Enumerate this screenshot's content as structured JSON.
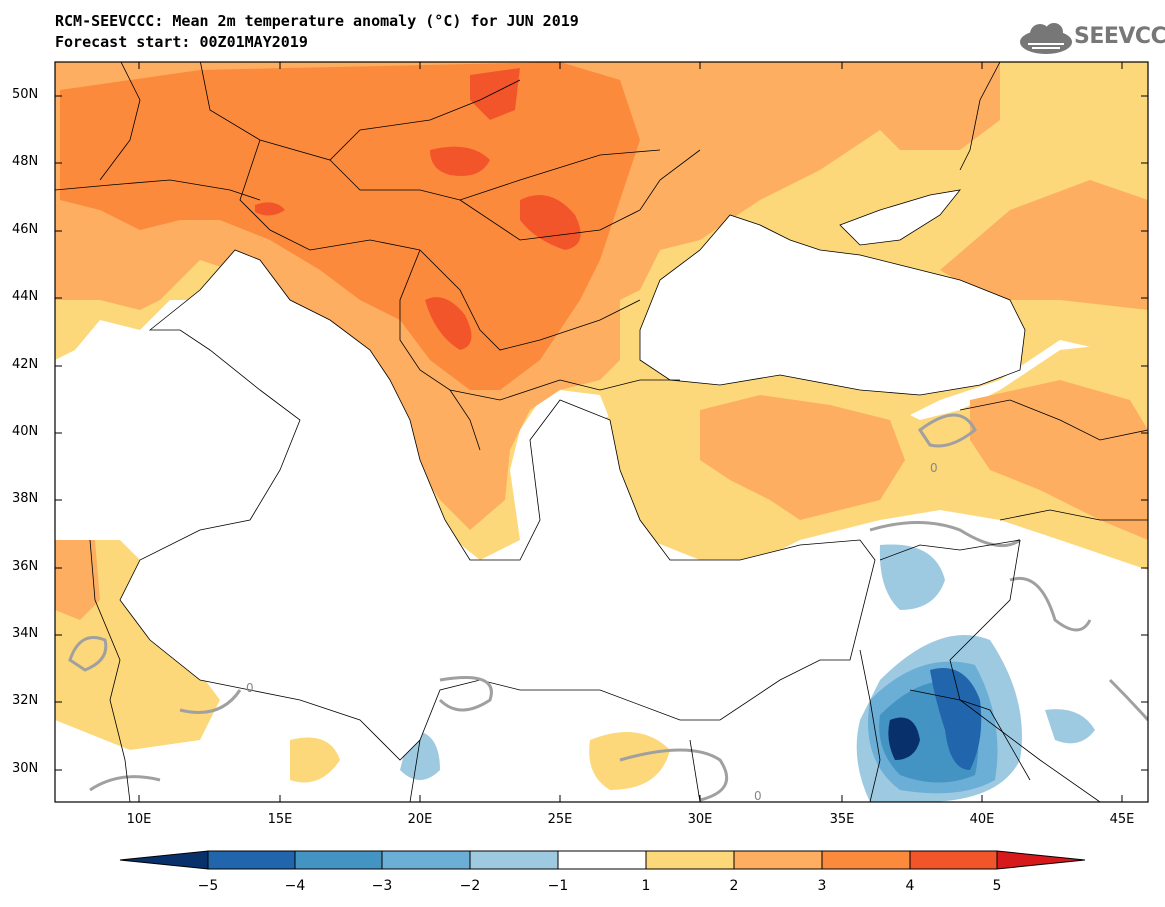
{
  "header": {
    "title": "RCM-SEEVCCC: Mean 2m temperature anomaly (°C) for JUN 2019",
    "subtitle": "Forecast start: 00Z01MAY2019",
    "logo_text": "SEEVCCC"
  },
  "map": {
    "variable": "Mean 2m temperature anomaly",
    "unit": "°C",
    "lat_labels": [
      "50N",
      "48N",
      "46N",
      "44N",
      "42N",
      "40N",
      "38N",
      "36N",
      "34N",
      "32N",
      "30N"
    ],
    "lon_labels": [
      "10E",
      "15E",
      "20E",
      "25E",
      "30E",
      "35E",
      "40E",
      "45E"
    ],
    "contour_label": "0"
  },
  "colorbar": {
    "ticks": [
      "−5",
      "−4",
      "−3",
      "−2",
      "−1",
      "1",
      "2",
      "3",
      "4",
      "5"
    ],
    "colors": [
      "#08306b",
      "#2166ac",
      "#4393c3",
      "#6baed6",
      "#9ecae1",
      "#ffffff",
      "#fdd87a",
      "#fdae61",
      "#fb8a3c",
      "#f2552a",
      "#d7191c"
    ]
  }
}
